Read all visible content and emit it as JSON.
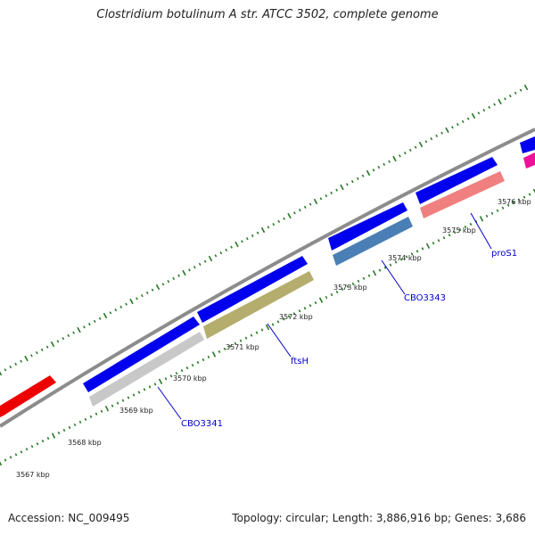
{
  "header": {
    "title": "Clostridium botulinum A str. ATCC 3502, complete genome"
  },
  "footer": {
    "accession": "Accession: NC_009495",
    "summary": "Topology: circular; Length: 3,886,916 bp; Genes: 3,686"
  },
  "map": {
    "ticks": [
      {
        "label": "3567 kbp"
      },
      {
        "label": "3568 kbp"
      },
      {
        "label": "3569 kbp"
      },
      {
        "label": "3570 kbp"
      },
      {
        "label": "3571 kbp"
      },
      {
        "label": "3572 kbp"
      },
      {
        "label": "3573 kbp"
      },
      {
        "label": "3574 kbp"
      },
      {
        "label": "3575 kbp"
      },
      {
        "label": "3576 kbp"
      }
    ],
    "gene_labels": [
      {
        "label": "CBO3341"
      },
      {
        "label": "ftsH"
      },
      {
        "label": "CBO3343"
      },
      {
        "label": "proS1"
      }
    ],
    "colors": {
      "backbone": "#8c8c8c",
      "forward_gene": "#0000ee",
      "red_gene": "#ee0000",
      "magenta_gene": "#ee1199",
      "CBO3341": "#c8c8c8",
      "ftsH": "#b5ad6e",
      "CBO3343": "#4a7fb5",
      "proS1": "#f08080",
      "tick": "#2a7a2a",
      "label_line": "#0000cc",
      "label_text": "#0000cc"
    }
  }
}
